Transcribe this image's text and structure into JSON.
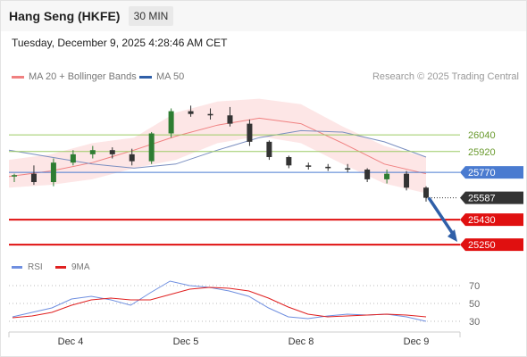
{
  "header": {
    "title": "Hang Seng (HKFE)",
    "timeframe": "30 MIN",
    "datetime": "Tuesday, December 9, 2025 4:28:46 AM CET"
  },
  "legend": {
    "ma20_label": "MA 20 + Bollinger Bands",
    "ma50_label": "MA 50",
    "credit": "Research © 2025 Trading Central",
    "rsi_label": "RSI",
    "rsi_ma_label": "9MA"
  },
  "colors": {
    "up_candle": "#2e7d32",
    "down_candle": "#333333",
    "bollinger_fill": "#fde3e3",
    "ma20": "#f08080",
    "ma50": "#7a8ec0",
    "resistance": "#9ccc65",
    "pivot": "#4a7bd0",
    "support": "#e01010",
    "arrow": "#2f5fa8",
    "rsi": "#6f8fe0",
    "rsi_ma": "#e02020"
  },
  "chart_data": [
    {
      "type": "candlestick",
      "title": "Hang Seng (HKFE)",
      "x_ticks": [
        "Dec 4",
        "Dec 5",
        "Dec 8",
        "Dec 9"
      ],
      "ylim": [
        25180,
        26400
      ],
      "levels": [
        {
          "label": "26040",
          "value": 26040,
          "kind": "resistance"
        },
        {
          "label": "25920",
          "value": 25920,
          "kind": "resistance"
        },
        {
          "label": "25770",
          "value": 25770,
          "kind": "pivot"
        },
        {
          "label": "25587",
          "value": 25587,
          "kind": "last_price"
        },
        {
          "label": "25430",
          "value": 25430,
          "kind": "support"
        },
        {
          "label": "25250",
          "value": 25250,
          "kind": "support"
        }
      ],
      "projection": {
        "from_value": 25587,
        "to_value": 25270
      },
      "series": [
        {
          "name": "MA 20 + Bollinger Bands",
          "mid": [
            25740,
            25780,
            25840,
            25930,
            26030,
            26110,
            26160,
            26120,
            25980,
            25830,
            25760
          ],
          "upper": [
            25860,
            25900,
            25980,
            26020,
            26200,
            26280,
            26300,
            26260,
            26100,
            25960,
            25880
          ],
          "lower": [
            25660,
            25680,
            25720,
            25800,
            25860,
            25980,
            26030,
            25980,
            25830,
            25690,
            25620
          ]
        },
        {
          "name": "MA 50",
          "values": [
            25930,
            25880,
            25830,
            25800,
            25830,
            25930,
            26020,
            26070,
            26060,
            25990,
            25880
          ]
        }
      ],
      "ohlc_overview": [
        [
          25740,
          25760,
          25700,
          25750
        ],
        [
          25760,
          25820,
          25680,
          25700
        ],
        [
          25700,
          25870,
          25670,
          25840
        ],
        [
          25840,
          25930,
          25820,
          25900
        ],
        [
          25900,
          25960,
          25870,
          25930
        ],
        [
          25930,
          25950,
          25870,
          25900
        ],
        [
          25900,
          25940,
          25820,
          25850
        ],
        [
          25850,
          26060,
          25830,
          26050
        ],
        [
          26050,
          26230,
          26020,
          26210
        ],
        [
          26210,
          26250,
          26170,
          26190
        ],
        [
          26190,
          26230,
          26150,
          26180
        ],
        [
          26180,
          26240,
          26100,
          26120
        ],
        [
          26120,
          26150,
          25960,
          25990
        ],
        [
          25990,
          26000,
          25860,
          25880
        ],
        [
          25880,
          25890,
          25800,
          25820
        ],
        [
          25820,
          25840,
          25790,
          25810
        ],
        [
          25810,
          25830,
          25780,
          25800
        ],
        [
          25800,
          25830,
          25770,
          25790
        ],
        [
          25790,
          25800,
          25700,
          25720
        ],
        [
          25720,
          25790,
          25690,
          25760
        ],
        [
          25760,
          25780,
          25640,
          25660
        ],
        [
          25660,
          25670,
          25560,
          25587
        ]
      ]
    },
    {
      "type": "line",
      "title": "RSI",
      "yticks": [
        70,
        50,
        30
      ],
      "ylim": [
        20,
        80
      ],
      "series": [
        {
          "name": "RSI",
          "values": [
            35,
            40,
            45,
            55,
            58,
            54,
            48,
            62,
            75,
            70,
            68,
            64,
            58,
            45,
            35,
            33,
            36,
            38,
            37,
            38,
            35,
            30
          ]
        },
        {
          "name": "9MA",
          "values": [
            34,
            36,
            40,
            48,
            54,
            56,
            54,
            54,
            60,
            66,
            68,
            67,
            64,
            56,
            46,
            38,
            35,
            36,
            37,
            38,
            37,
            35
          ]
        }
      ]
    }
  ]
}
